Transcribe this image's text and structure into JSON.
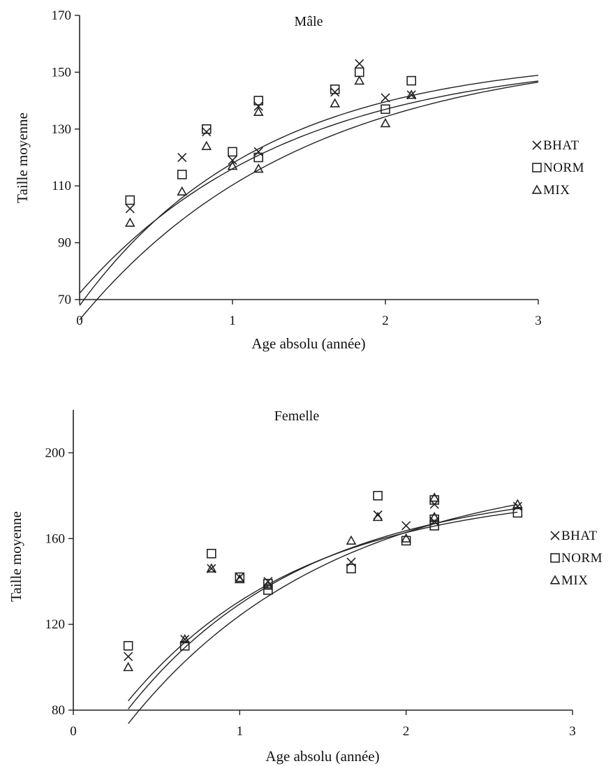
{
  "chart_data": [
    {
      "type": "scatter",
      "title": "Mâle",
      "xlabel": "Age absolu (année)",
      "ylabel": "Taille moyenne",
      "xlim": [
        0,
        3
      ],
      "ylim": [
        70,
        170
      ],
      "xticks": [
        "0",
        "1",
        "2",
        "3"
      ],
      "yticks": [
        "70",
        "90",
        "110",
        "130",
        "150",
        "170"
      ],
      "grid": false,
      "legend_placement": "right",
      "series": [
        {
          "name": "BHAT",
          "marker": "cross",
          "points": [
            [
              0.33,
              102
            ],
            [
              0.67,
              120
            ],
            [
              0.83,
              129
            ],
            [
              1.0,
              119
            ],
            [
              1.17,
              122
            ],
            [
              1.17,
              138
            ],
            [
              1.67,
              143
            ],
            [
              1.83,
              153
            ],
            [
              2.0,
              141
            ],
            [
              2.17,
              142
            ]
          ],
          "fit": {
            "model": "von-bertalanffy",
            "Linf": 159,
            "K": 0.68,
            "t0": -0.74
          }
        },
        {
          "name": "NORM",
          "marker": "square",
          "points": [
            [
              0.33,
              105
            ],
            [
              0.67,
              114
            ],
            [
              0.83,
              130
            ],
            [
              1.0,
              122
            ],
            [
              1.17,
              140
            ],
            [
              1.17,
              120
            ],
            [
              1.67,
              144
            ],
            [
              1.83,
              150
            ],
            [
              2.0,
              137
            ],
            [
              2.17,
              147
            ]
          ],
          "fit": {
            "model": "von-bertalanffy",
            "Linf": 156,
            "K": 0.84,
            "t0": -0.68
          }
        },
        {
          "name": "MIX",
          "marker": "triangle",
          "points": [
            [
              0.33,
              97
            ],
            [
              0.67,
              108
            ],
            [
              0.83,
              124
            ],
            [
              1.0,
              117
            ],
            [
              1.17,
              136
            ],
            [
              1.17,
              116
            ],
            [
              1.67,
              139
            ],
            [
              1.83,
              147
            ],
            [
              2.0,
              132
            ],
            [
              2.17,
              142
            ]
          ],
          "fit": {
            "model": "von-bertalanffy",
            "Linf": 156,
            "K": 0.74,
            "t0": -0.84
          }
        }
      ]
    },
    {
      "type": "scatter",
      "title": "Femelle",
      "xlabel": "Age absolu (année)",
      "ylabel": "Taille moyenne",
      "xlim": [
        0,
        3
      ],
      "ylim": [
        80,
        220
      ],
      "xticks": [
        "0",
        "1",
        "2",
        "3"
      ],
      "yticks": [
        "80",
        "120",
        "160",
        "200"
      ],
      "grid": false,
      "legend_placement": "right",
      "series": [
        {
          "name": "BHAT",
          "marker": "cross",
          "points": [
            [
              0.33,
              105
            ],
            [
              0.67,
              113
            ],
            [
              0.83,
              146
            ],
            [
              1.0,
              142
            ],
            [
              1.17,
              140
            ],
            [
              1.67,
              149
            ],
            [
              1.83,
              171
            ],
            [
              2.0,
              166
            ],
            [
              2.17,
              176
            ],
            [
              2.17,
              168
            ],
            [
              2.67,
              175
            ]
          ],
          "fit": {
            "model": "von-bertalanffy",
            "Linf": 186,
            "K": 0.93,
            "t0": -0.28
          }
        },
        {
          "name": "NORM",
          "marker": "square",
          "points": [
            [
              0.33,
              110
            ],
            [
              0.67,
              110
            ],
            [
              0.83,
              153
            ],
            [
              1.0,
              142
            ],
            [
              1.17,
              136
            ],
            [
              1.17,
              139
            ],
            [
              1.67,
              146
            ],
            [
              1.83,
              180
            ],
            [
              2.0,
              159
            ],
            [
              2.17,
              166
            ],
            [
              2.17,
              169
            ],
            [
              2.17,
              178
            ],
            [
              2.67,
              172
            ]
          ],
          "fit": {
            "model": "von-bertalanffy",
            "Linf": 183,
            "K": 0.95,
            "t0": -0.32
          }
        },
        {
          "name": "MIX",
          "marker": "triangle",
          "points": [
            [
              0.33,
              100
            ],
            [
              0.67,
              113
            ],
            [
              0.83,
              146
            ],
            [
              1.0,
              141
            ],
            [
              1.17,
              138
            ],
            [
              1.67,
              159
            ],
            [
              1.83,
              170
            ],
            [
              2.0,
              160
            ],
            [
              2.17,
              179
            ],
            [
              2.17,
              170
            ],
            [
              2.67,
              176
            ]
          ],
          "fit": {
            "model": "von-bertalanffy",
            "Linf": 194,
            "K": 0.81,
            "t0": -0.26
          }
        }
      ]
    }
  ]
}
